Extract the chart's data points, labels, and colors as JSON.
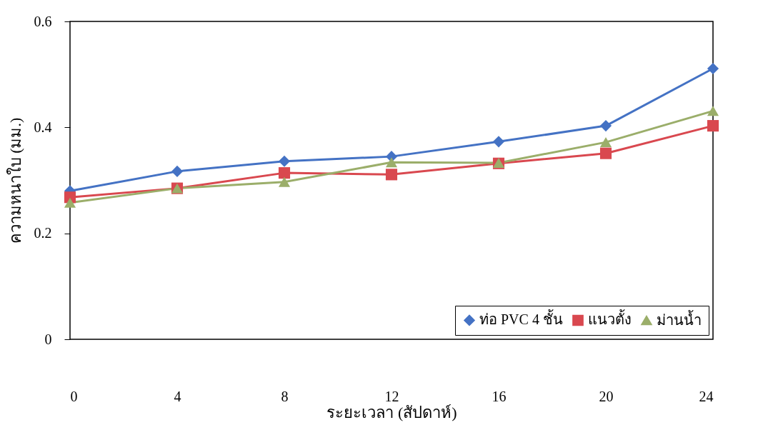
{
  "chart_data": {
    "type": "line",
    "xlabel": "ระยะเวลา (สัปดาห์)",
    "ylabel": "ความหนาใบ (มม.)",
    "x": [
      0,
      4,
      8,
      12,
      16,
      20,
      24
    ],
    "xlim": [
      0,
      24
    ],
    "xticks": [
      0,
      4,
      8,
      12,
      16,
      20,
      24
    ],
    "ylim": [
      0,
      0.6
    ],
    "yticks": [
      0,
      0.2,
      0.4,
      0.6
    ],
    "grid": false,
    "legend": "bottom right",
    "series": [
      {
        "name": "ท่อ PVC 4 ชั้น",
        "color": "#4472c4",
        "marker": "diamond",
        "values": [
          0.28,
          0.317,
          0.336,
          0.345,
          0.373,
          0.403,
          0.511
        ]
      },
      {
        "name": "แนวตั้ง",
        "color": "#d9484f",
        "marker": "square",
        "values": [
          0.268,
          0.285,
          0.314,
          0.311,
          0.332,
          0.351,
          0.403
        ]
      },
      {
        "name": "ม่านน้ำ",
        "color": "#9bae6a",
        "marker": "triangle",
        "values": [
          0.258,
          0.285,
          0.297,
          0.334,
          0.333,
          0.372,
          0.431
        ]
      }
    ]
  }
}
